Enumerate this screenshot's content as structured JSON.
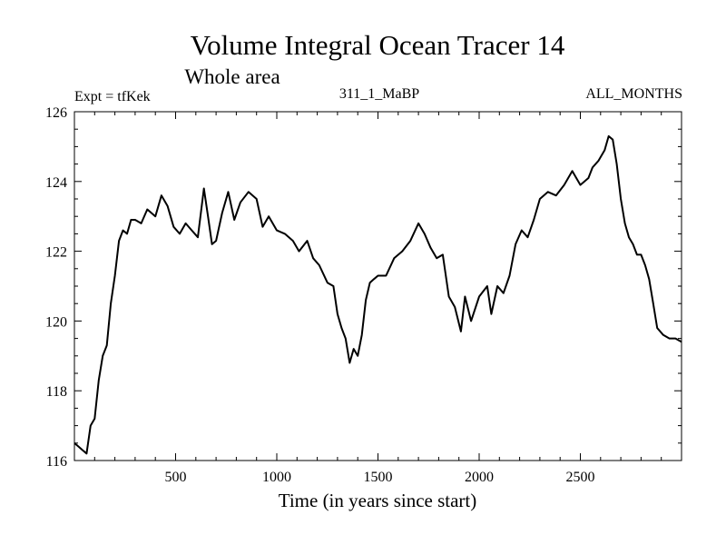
{
  "chart_data": {
    "type": "line",
    "title": "Volume Integral Ocean Tracer 14",
    "subtitle": "Whole area",
    "left_label": "Expt = tfKek",
    "center_label": "311_1_MaBP",
    "right_label": "ALL_MONTHS",
    "xlabel": "Time (in years since start)",
    "ylabel": "",
    "xlim": [
      0,
      3000
    ],
    "ylim": [
      116,
      126
    ],
    "x_ticks": [
      "500",
      "1000",
      "1500",
      "2000",
      "2500"
    ],
    "y_ticks": [
      "116",
      "118",
      "120",
      "122",
      "124",
      "126"
    ],
    "grid": false,
    "series": [
      {
        "color": "#000000",
        "x": [
          0,
          20,
          40,
          60,
          80,
          100,
          120,
          140,
          160,
          180,
          200,
          220,
          240,
          260,
          280,
          300,
          330,
          360,
          400,
          430,
          460,
          490,
          520,
          550,
          580,
          610,
          640,
          660,
          680,
          700,
          730,
          760,
          790,
          820,
          860,
          900,
          930,
          960,
          1000,
          1040,
          1080,
          1110,
          1150,
          1180,
          1210,
          1250,
          1280,
          1300,
          1320,
          1340,
          1360,
          1380,
          1400,
          1420,
          1440,
          1460,
          1480,
          1500,
          1540,
          1580,
          1620,
          1660,
          1700,
          1730,
          1760,
          1790,
          1820,
          1850,
          1880,
          1910,
          1930,
          1960,
          2000,
          2040,
          2060,
          2090,
          2120,
          2150,
          2180,
          2210,
          2240,
          2270,
          2300,
          2340,
          2380,
          2420,
          2460,
          2500,
          2540,
          2560,
          2590,
          2620,
          2640,
          2660,
          2680,
          2700,
          2720,
          2740,
          2760,
          2780,
          2800,
          2820,
          2840,
          2860,
          2880,
          2910,
          2940,
          2970,
          3000
        ],
        "y": [
          116.5,
          116.4,
          116.3,
          116.2,
          117.0,
          117.2,
          118.3,
          119.0,
          119.3,
          120.5,
          121.3,
          122.3,
          122.6,
          122.5,
          122.9,
          122.9,
          122.8,
          123.2,
          123.0,
          123.6,
          123.3,
          122.7,
          122.5,
          122.8,
          122.6,
          122.4,
          123.8,
          123.0,
          122.2,
          122.3,
          123.1,
          123.7,
          122.9,
          123.4,
          123.7,
          123.5,
          122.7,
          123.0,
          122.6,
          122.5,
          122.3,
          122.0,
          122.3,
          121.8,
          121.6,
          121.1,
          121.0,
          120.2,
          119.8,
          119.5,
          118.8,
          119.2,
          119.0,
          119.6,
          120.6,
          121.1,
          121.2,
          121.3,
          121.3,
          121.8,
          122.0,
          122.3,
          122.8,
          122.5,
          122.1,
          121.8,
          121.9,
          120.7,
          120.4,
          119.7,
          120.7,
          120.0,
          120.7,
          121.0,
          120.2,
          121.0,
          120.8,
          121.3,
          122.2,
          122.6,
          122.4,
          122.9,
          123.5,
          123.7,
          123.6,
          123.9,
          124.3,
          123.9,
          124.1,
          124.4,
          124.6,
          124.9,
          125.3,
          125.2,
          124.5,
          123.5,
          122.8,
          122.4,
          122.2,
          121.9,
          121.9,
          121.6,
          121.2,
          120.5,
          119.8,
          119.6,
          119.5,
          119.5,
          119.4
        ]
      }
    ]
  }
}
